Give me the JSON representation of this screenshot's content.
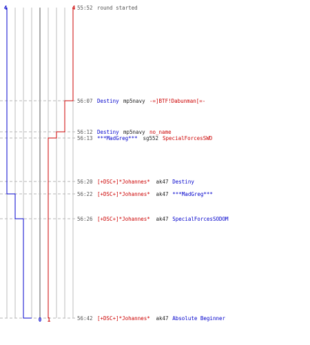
{
  "colors": {
    "blue_team": "#0000cc",
    "red_team": "#cc0000",
    "time": "#555555",
    "weapon": "#222222",
    "grid": "#bdbdbd",
    "grid_dark": "#555555",
    "guide": "#b5b5b5"
  },
  "score": {
    "blue_start": "4",
    "red_start": "4",
    "blue_end": "0",
    "red_end": "1"
  },
  "events": [
    {
      "time": "55:52",
      "kind": "info",
      "text": "round started",
      "blue": 4,
      "red": 4
    },
    {
      "time": "56:07",
      "kind": "kill",
      "killer": "Destiny",
      "killer_team": "blue",
      "weapon": "mp5navy",
      "victim": "-=]BTF!Dabunman[=-",
      "victim_team": "red",
      "blue": 4,
      "red": 3
    },
    {
      "time": "56:12",
      "kind": "kill",
      "killer": "Destiny",
      "killer_team": "blue",
      "weapon": "mp5navy",
      "victim": "no_name",
      "victim_team": "red",
      "blue": 4,
      "red": 2
    },
    {
      "time": "56:13",
      "kind": "kill",
      "killer": "***MadGreg***",
      "killer_team": "blue",
      "weapon": "sg552",
      "victim": "SpecialForcesSWD",
      "victim_team": "red",
      "blue": 4,
      "red": 1
    },
    {
      "time": "56:20",
      "kind": "kill",
      "killer": "[+DSC+]*Johannes*",
      "killer_team": "red",
      "weapon": "ak47",
      "victim": "Destiny",
      "victim_team": "blue",
      "blue": 3,
      "red": 1
    },
    {
      "time": "56:22",
      "kind": "kill",
      "killer": "[+DSC+]*Johannes*",
      "killer_team": "red",
      "weapon": "ak47",
      "victim": "***MadGreg***",
      "victim_team": "blue",
      "blue": 2,
      "red": 1
    },
    {
      "time": "56:26",
      "kind": "kill",
      "killer": "[+DSC+]*Johannes*",
      "killer_team": "red",
      "weapon": "ak47",
      "victim": "SpecialForcesSODOM",
      "victim_team": "blue",
      "blue": 1,
      "red": 1
    },
    {
      "time": "56:42",
      "kind": "kill",
      "killer": "[+DSC+]*Johannes*",
      "killer_team": "red",
      "weapon": "ak47",
      "victim": "Absolute Beginner",
      "victim_team": "blue",
      "blue": 0,
      "red": 1
    }
  ]
}
